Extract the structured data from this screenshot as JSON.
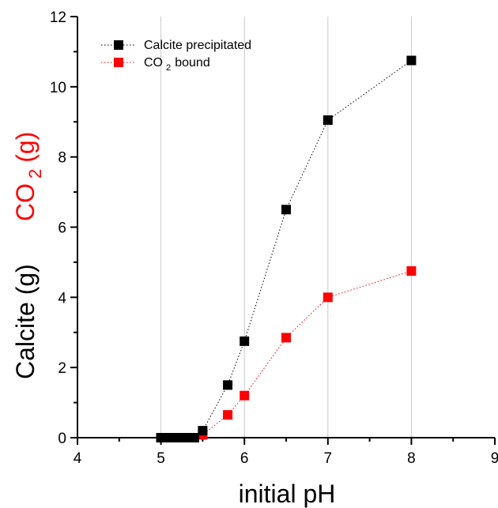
{
  "chart_data": {
    "type": "scatter",
    "xlabel": "initial pH",
    "ylabel_calcite": "Calcite (g)",
    "ylabel_co2_main": "CO",
    "ylabel_co2_sub": "2",
    "ylabel_co2_unit": "(g)",
    "xlim": [
      4,
      9
    ],
    "ylim": [
      0,
      12
    ],
    "x_ticks": [
      "4",
      "5",
      "6",
      "7",
      "8",
      "9"
    ],
    "y_ticks": [
      "0",
      "2",
      "4",
      "6",
      "8",
      "10",
      "12"
    ],
    "grid": "vertical",
    "legend_position": "top-left",
    "colors": {
      "calcite": "#000000",
      "co2": "#ff0000"
    },
    "series": [
      {
        "name": "Calcite precipitated",
        "color": "#000000",
        "x": [
          5.0,
          5.05,
          5.1,
          5.15,
          5.2,
          5.25,
          5.3,
          5.35,
          5.4,
          5.5,
          5.8,
          6.0,
          6.5,
          7.0,
          8.0
        ],
        "y": [
          0,
          0,
          0,
          0,
          0,
          0,
          0,
          0,
          0,
          0.2,
          1.5,
          2.75,
          6.5,
          9.05,
          10.75
        ]
      },
      {
        "name": "CO 2 bound",
        "legend_main": "CO",
        "legend_sub": "2",
        "legend_rest": "bound",
        "color": "#ff0000",
        "x": [
          5.0,
          5.05,
          5.1,
          5.15,
          5.2,
          5.25,
          5.3,
          5.35,
          5.4,
          5.5,
          5.8,
          6.0,
          6.5,
          7.0,
          8.0
        ],
        "y": [
          0,
          0,
          0,
          0,
          0,
          0,
          0,
          0,
          0,
          0.08,
          0.65,
          1.2,
          2.85,
          4.0,
          4.75
        ]
      }
    ]
  }
}
